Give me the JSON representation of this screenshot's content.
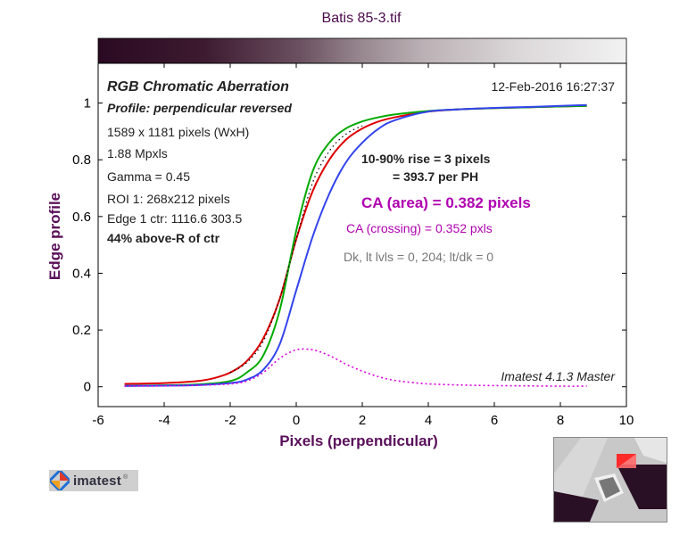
{
  "title": "Batis 85-3.tif",
  "chart_data": {
    "type": "line",
    "title": "Batis 85-3.tif",
    "xlabel": "Pixels (perpendicular)",
    "ylabel": "Edge profile",
    "xlim": [
      -6,
      10
    ],
    "ylim": [
      -0.07,
      1.14
    ],
    "xticks": [
      "-6",
      "-4",
      "-2",
      "0",
      "2",
      "4",
      "6",
      "8",
      "10"
    ],
    "yticks": [
      "0",
      "0.2",
      "0.4",
      "0.6",
      "0.8",
      "1"
    ],
    "grid": false,
    "series": [
      {
        "color": "#dd0000",
        "x": [
          -5.2,
          -4,
          -3,
          -2.5,
          -2,
          -1.5,
          -1,
          -0.5,
          0,
          0.5,
          1,
          1.5,
          2,
          2.5,
          3,
          4,
          5,
          6,
          7,
          8,
          8.8
        ],
        "y": [
          0.01,
          0.013,
          0.02,
          0.03,
          0.05,
          0.09,
          0.17,
          0.31,
          0.52,
          0.69,
          0.8,
          0.87,
          0.91,
          0.935,
          0.95,
          0.97,
          0.978,
          0.982,
          0.985,
          0.988,
          0.99
        ]
      },
      {
        "color": "#00aa00",
        "x": [
          -5.2,
          -4,
          -3,
          -2,
          -1.5,
          -1,
          -0.5,
          0,
          0.5,
          1,
          1.5,
          2,
          2.5,
          3,
          4,
          5,
          6,
          7,
          8,
          8.8
        ],
        "y": [
          0.003,
          0.005,
          0.008,
          0.02,
          0.05,
          0.11,
          0.27,
          0.55,
          0.76,
          0.86,
          0.91,
          0.935,
          0.95,
          0.96,
          0.972,
          0.978,
          0.982,
          0.985,
          0.988,
          0.99
        ]
      },
      {
        "color": "#3344ee",
        "x": [
          -5.2,
          -4,
          -3,
          -2,
          -1.5,
          -1,
          -0.5,
          0,
          0.5,
          1,
          1.5,
          2,
          2.5,
          3,
          4,
          5,
          6,
          7,
          8,
          8.8
        ],
        "y": [
          0.003,
          0.004,
          0.006,
          0.013,
          0.025,
          0.06,
          0.15,
          0.34,
          0.53,
          0.68,
          0.79,
          0.86,
          0.91,
          0.94,
          0.97,
          0.978,
          0.983,
          0.986,
          0.99,
          0.993
        ]
      },
      {
        "color": "#dd00dd",
        "dashed": true,
        "x": [
          -5.2,
          -4,
          -3,
          -2,
          -1.5,
          -1,
          -0.5,
          0,
          0.5,
          1,
          1.5,
          2,
          2.5,
          3,
          3.5,
          4,
          5,
          6,
          7,
          8,
          8.8
        ],
        "y": [
          0.002,
          0.003,
          0.005,
          0.01,
          0.02,
          0.05,
          0.1,
          0.13,
          0.13,
          0.11,
          0.08,
          0.055,
          0.035,
          0.022,
          0.015,
          0.01,
          0.006,
          0.004,
          0.003,
          0.002,
          0.002
        ]
      },
      {
        "color": "#000000",
        "dotted": true,
        "x": [
          -2,
          -1.5,
          -1,
          -0.5,
          0,
          0.5,
          1,
          1.5,
          2
        ],
        "y": [
          0.05,
          0.085,
          0.16,
          0.31,
          0.52,
          0.72,
          0.83,
          0.89,
          0.92
        ]
      }
    ]
  },
  "info": {
    "heading": "RGB Chromatic Aberration",
    "profile": "Profile: perpendicular reversed",
    "pixels": "1589 x 1181 pixels (WxH)",
    "mpxls": "1.88 Mpxls",
    "gamma": "Gamma = 0.45",
    "roi": "ROI 1: 268x212 pixels",
    "edge_ctr": "Edge 1 ctr: 1116.6  303.5",
    "above": "44% above-R of ctr",
    "date": "12-Feb-2016 16:27:37",
    "rise1": "10-90% rise = 3 pixels",
    "rise2": "= 393.7 per PH",
    "ca_area": "CA (area) = 0.382 pixels",
    "ca_crossing": "CA (crossing) = 0.352 pxls",
    "dk": "Dk, lt lvls = 0, 204;  lt/dk = 0",
    "version": "Imatest 4.1.3  Master"
  },
  "logo": {
    "text": "imatest",
    "sub": "®"
  },
  "colors": {
    "title": "#4b0b4b",
    "magenta": "#b000b0",
    "purple_label": "#5a0f5a",
    "gray": "#777777"
  }
}
